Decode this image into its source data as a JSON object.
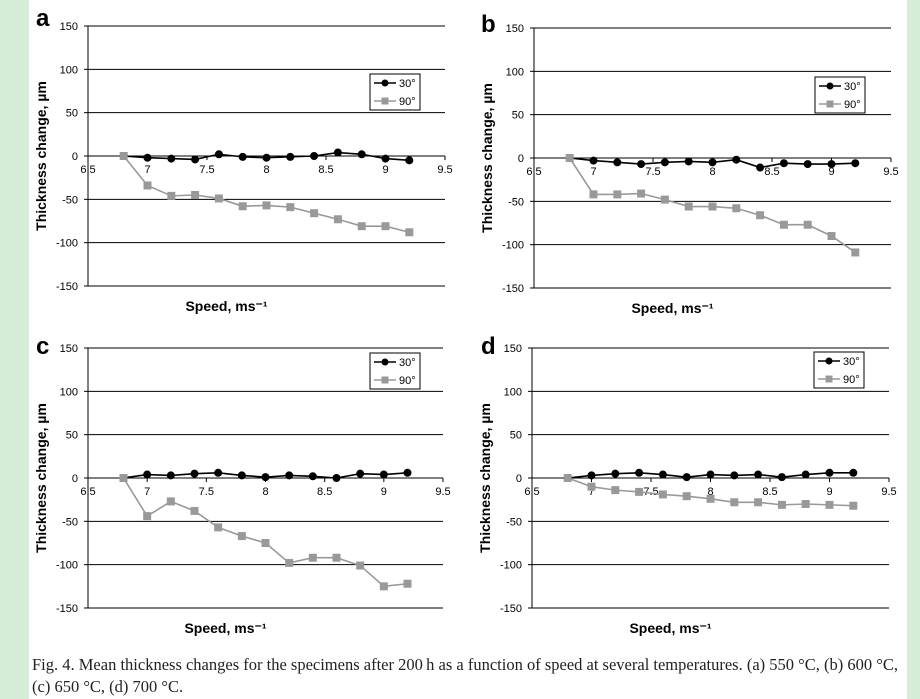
{
  "caption": "Fig. 4. Mean thickness changes for the specimens after 200 h as a function of speed at several temperatures. (a) 550 °C, (b) 600 °C, (c) 650 °C, (d) 700 °C.",
  "chart_data": [
    {
      "type": "line",
      "panel_label": "a",
      "xlabel": "Speed, ms⁻¹",
      "ylabel": "Thickness change, µm",
      "xlim": [
        6.5,
        9.5
      ],
      "ylim": [
        -150,
        150
      ],
      "xticks": [
        "6.5",
        "7",
        "7.5",
        "8",
        "8.5",
        "9",
        "9.5"
      ],
      "yticks": [
        "150",
        "100",
        "50",
        "0",
        "-50",
        "-100",
        "-150"
      ],
      "grid": "horizontal",
      "legend_position": "top-right",
      "series": [
        {
          "name": "30°",
          "marker": "circle",
          "color": "#000000",
          "x": [
            6.8,
            7.0,
            7.2,
            7.4,
            7.6,
            7.8,
            8.0,
            8.2,
            8.4,
            8.6,
            8.8,
            9.0,
            9.2
          ],
          "y": [
            0,
            -2,
            -3,
            -4,
            2,
            -1,
            -2,
            -1,
            0,
            4,
            2,
            -3,
            -5
          ]
        },
        {
          "name": "90°",
          "marker": "square",
          "color": "#999999",
          "x": [
            6.8,
            7.0,
            7.2,
            7.4,
            7.6,
            7.8,
            8.0,
            8.2,
            8.4,
            8.6,
            8.8,
            9.0,
            9.2
          ],
          "y": [
            0,
            -34,
            -46,
            -45,
            -49,
            -58,
            -57,
            -59,
            -66,
            -73,
            -81,
            -81,
            -88
          ]
        }
      ]
    },
    {
      "type": "line",
      "panel_label": "b",
      "xlabel": "Speed, ms⁻¹",
      "ylabel": "Thickness change, µm",
      "xlim": [
        6.5,
        9.5
      ],
      "ylim": [
        -150,
        150
      ],
      "xticks": [
        "6.5",
        "7",
        "7.5",
        "8",
        "8.5",
        "9",
        "9.5"
      ],
      "yticks": [
        "150",
        "100",
        "50",
        "0",
        "-50",
        "-100",
        "-150"
      ],
      "grid": "horizontal",
      "legend_position": "top-right",
      "series": [
        {
          "name": "30°",
          "marker": "circle",
          "color": "#000000",
          "x": [
            6.8,
            7.0,
            7.2,
            7.4,
            7.6,
            7.8,
            8.0,
            8.2,
            8.4,
            8.6,
            8.8,
            9.0,
            9.2
          ],
          "y": [
            0,
            -3,
            -5,
            -7,
            -5,
            -4,
            -5,
            -2,
            -11,
            -6,
            -7,
            -7,
            -6
          ]
        },
        {
          "name": "90°",
          "marker": "square",
          "color": "#999999",
          "x": [
            6.8,
            7.0,
            7.2,
            7.4,
            7.6,
            7.8,
            8.0,
            8.2,
            8.4,
            8.6,
            8.8,
            9.0,
            9.2
          ],
          "y": [
            0,
            -42,
            -42,
            -41,
            -48,
            -56,
            -56,
            -58,
            -66,
            -77,
            -77,
            -90,
            -109
          ]
        }
      ]
    },
    {
      "type": "line",
      "panel_label": "c",
      "xlabel": "Speed, ms⁻¹",
      "ylabel": "Thickness change, µm",
      "xlim": [
        6.5,
        9.5
      ],
      "ylim": [
        -150,
        150
      ],
      "xticks": [
        "6.5",
        "7",
        "7.5",
        "8",
        "8.5",
        "9",
        "9.5"
      ],
      "yticks": [
        "150",
        "100",
        "50",
        "0",
        "-50",
        "-100",
        "-150"
      ],
      "grid": "horizontal",
      "legend_position": "top-right",
      "series": [
        {
          "name": "30°",
          "marker": "circle",
          "color": "#000000",
          "x": [
            6.8,
            7.0,
            7.2,
            7.4,
            7.6,
            7.8,
            8.0,
            8.2,
            8.4,
            8.6,
            8.8,
            9.0,
            9.2
          ],
          "y": [
            0,
            4,
            3,
            5,
            6,
            3,
            1,
            3,
            2,
            0,
            5,
            4,
            6
          ]
        },
        {
          "name": "90°",
          "marker": "square",
          "color": "#999999",
          "x": [
            6.8,
            7.0,
            7.2,
            7.4,
            7.6,
            7.8,
            8.0,
            8.2,
            8.4,
            8.6,
            8.8,
            9.0,
            9.2
          ],
          "y": [
            0,
            -44,
            -27,
            -38,
            -57,
            -67,
            -75,
            -98,
            -92,
            -92,
            -101,
            -125,
            -122
          ]
        }
      ]
    },
    {
      "type": "line",
      "panel_label": "d",
      "xlabel": "Speed, ms⁻¹",
      "ylabel": "Thickness change, µm",
      "xlim": [
        6.5,
        9.5
      ],
      "ylim": [
        -150,
        150
      ],
      "xticks": [
        "6.5",
        "7",
        "7.5",
        "8",
        "8.5",
        "9",
        "9.5"
      ],
      "yticks": [
        "150",
        "100",
        "50",
        "0",
        "-50",
        "-100",
        "-150"
      ],
      "grid": "horizontal",
      "legend_position": "top-right",
      "series": [
        {
          "name": "30°",
          "marker": "circle",
          "color": "#000000",
          "x": [
            6.8,
            7.0,
            7.2,
            7.4,
            7.6,
            7.8,
            8.0,
            8.2,
            8.4,
            8.6,
            8.8,
            9.0,
            9.2
          ],
          "y": [
            0,
            3,
            5,
            6,
            4,
            1,
            4,
            3,
            4,
            1,
            4,
            6,
            6
          ]
        },
        {
          "name": "90°",
          "marker": "square",
          "color": "#999999",
          "x": [
            6.8,
            7.0,
            7.2,
            7.4,
            7.6,
            7.8,
            8.0,
            8.2,
            8.4,
            8.6,
            8.8,
            9.0,
            9.2
          ],
          "y": [
            0,
            -10,
            -14,
            -16,
            -19,
            -21,
            -24,
            -28,
            -28,
            -31,
            -30,
            -31,
            -32
          ]
        }
      ]
    }
  ]
}
